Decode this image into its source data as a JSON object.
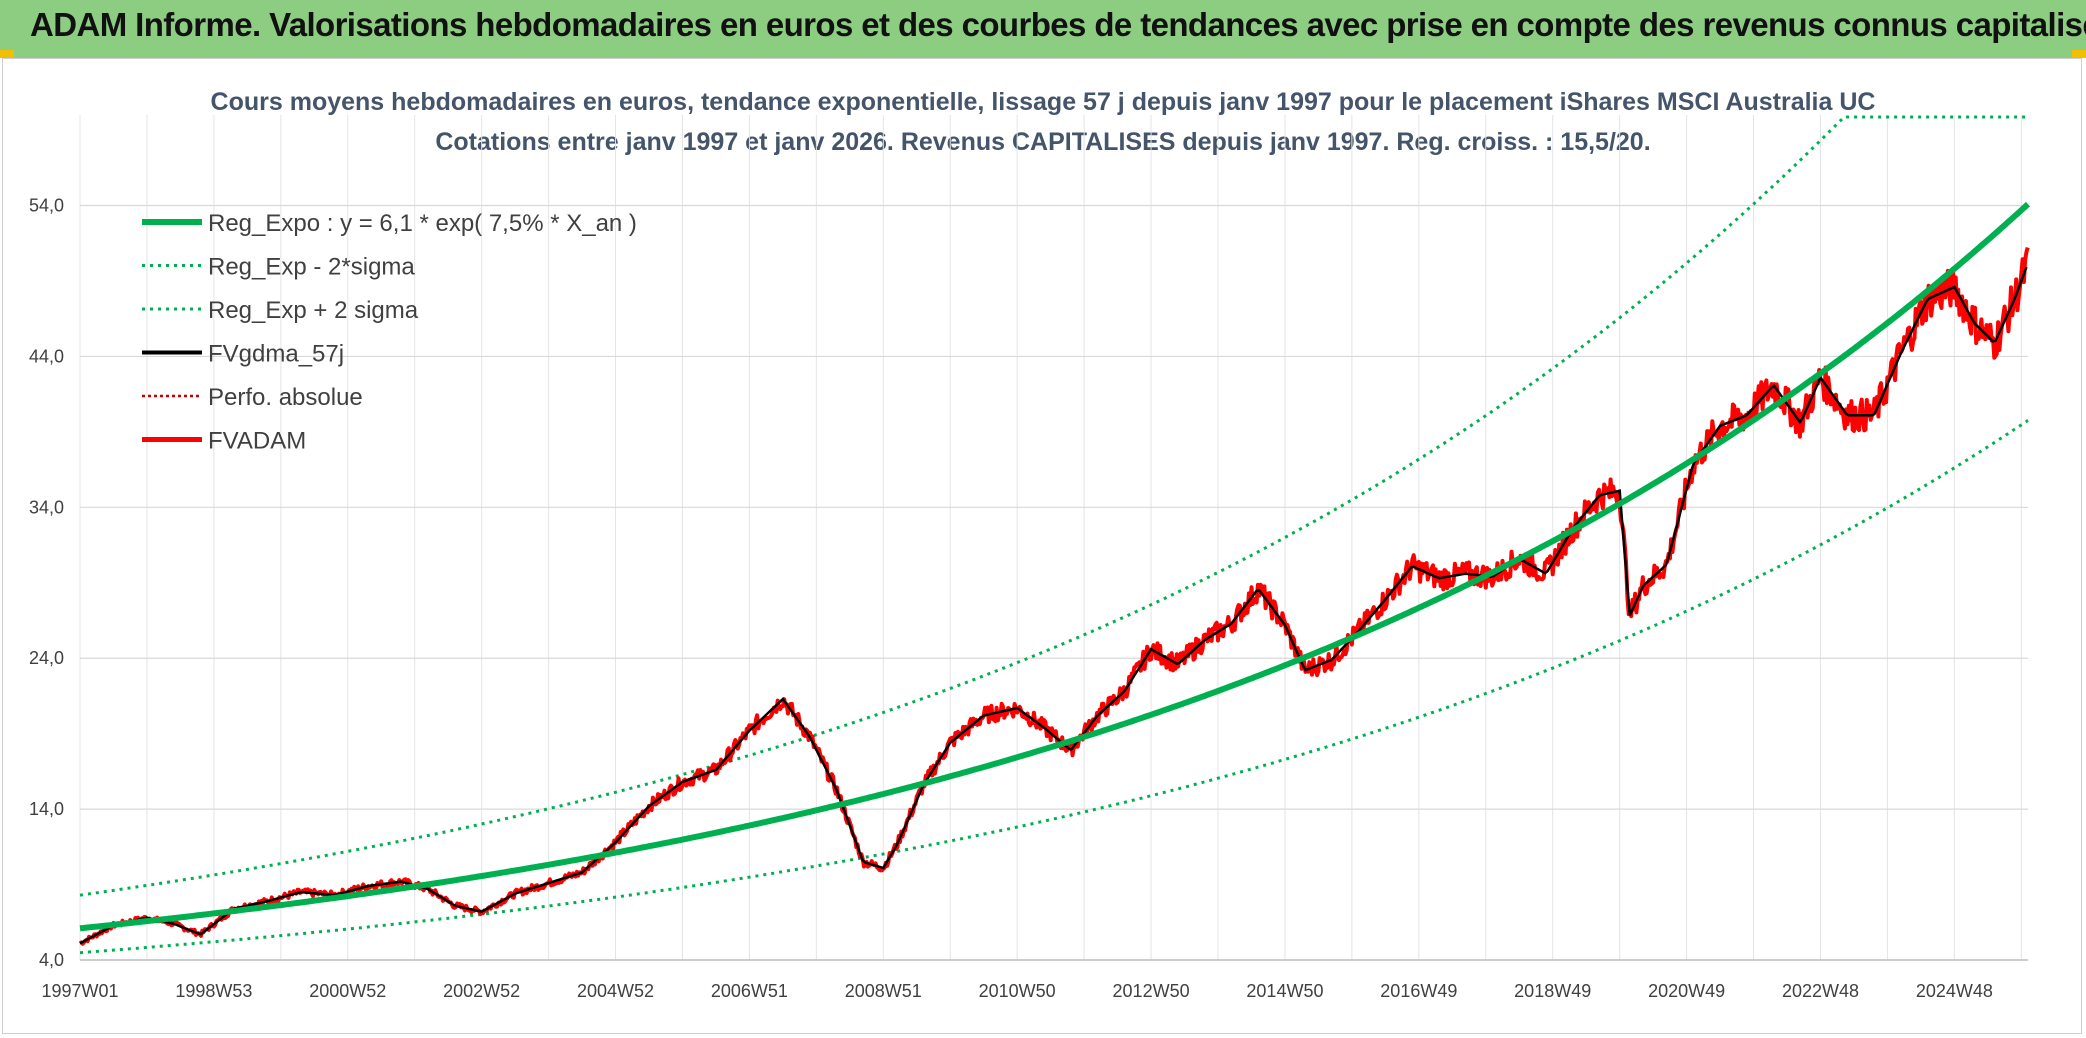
{
  "header": {
    "title": "ADAM Informe. Valorisations hebdomadaires en euros et des courbes de tendances avec prise en compte des revenus connus capitalisés"
  },
  "colors": {
    "header_bg": "#8ccd82",
    "reg_green": "#00b050",
    "smooth_black": "#000000",
    "adam_red": "#ff0000",
    "perfo_darkred": "#c00000"
  },
  "chart_data": {
    "type": "line",
    "title_line1": "Cours moyens hebdomadaires en euros, tendance exponentielle, lissage 57 j depuis janv 1997 pour le placement iShares MSCI Australia UC",
    "title_line2": "Cotations entre janv 1997 et janv 2026. Revenus CAPITALISES depuis janv 1997. Reg. croiss. : 15,5/20.",
    "xlabel": "",
    "ylabel": "",
    "x_range_years": [
      1997.0,
      2026.1
    ],
    "x_tick_labels": [
      "1997W01",
      "1998W53",
      "2000W52",
      "2002W52",
      "2004W52",
      "2006W51",
      "2008W51",
      "2010W50",
      "2012W50",
      "2014W50",
      "2016W49",
      "2018W49",
      "2020W49",
      "2022W48",
      "2024W48"
    ],
    "x_tick_years": [
      1997.0,
      1999.0,
      2001.0,
      2003.0,
      2005.0,
      2007.0,
      2009.0,
      2011.0,
      2013.0,
      2015.0,
      2017.0,
      2019.0,
      2021.0,
      2023.0,
      2025.0
    ],
    "y_ticks": [
      "4,0",
      "14,0",
      "24,0",
      "34,0",
      "44,0",
      "54,0"
    ],
    "y_tick_values": [
      4,
      14,
      24,
      34,
      44,
      54
    ],
    "ylim": [
      4,
      60
    ],
    "grid": true,
    "legend_position": "top-left",
    "legend": [
      "Reg_Expo : y = 6,1 * exp( 7,5% *  X_an )",
      "Reg_Exp - 2*sigma",
      "Reg_Exp + 2 sigma",
      "FVgdma_57j",
      "Perfo. absolue",
      "FVADAM"
    ],
    "trend": {
      "a": 6.1,
      "b": 0.075,
      "sigma_factor_low": 0.735,
      "sigma_factor_high": 1.36
    },
    "fvadam_series": {
      "x": [
        1997.0,
        1997.5,
        1998.0,
        1998.4,
        1998.8,
        1999.3,
        1999.8,
        2000.3,
        2000.8,
        2001.3,
        2001.8,
        2002.2,
        2002.6,
        2003.0,
        2003.5,
        2004.0,
        2004.5,
        2005.0,
        2005.5,
        2006.0,
        2006.5,
        2007.0,
        2007.5,
        2007.9,
        2008.3,
        2008.7,
        2009.0,
        2009.2,
        2009.6,
        2010.0,
        2010.5,
        2011.0,
        2011.4,
        2011.8,
        2012.2,
        2012.6,
        2013.0,
        2013.4,
        2013.8,
        2014.2,
        2014.6,
        2015.0,
        2015.3,
        2015.7,
        2016.1,
        2016.5,
        2016.9,
        2017.3,
        2017.7,
        2018.1,
        2018.5,
        2018.9,
        2019.3,
        2019.7,
        2020.0,
        2020.15,
        2020.35,
        2020.7,
        2021.1,
        2021.5,
        2021.9,
        2022.3,
        2022.7,
        2023.0,
        2023.4,
        2023.8,
        2024.2,
        2024.6,
        2025.0,
        2025.3,
        2025.6,
        2025.9,
        2026.1
      ],
      "y": [
        5.1,
        6.3,
        6.8,
        6.4,
        5.7,
        7.4,
        7.9,
        8.5,
        8.3,
        8.9,
        9.2,
        8.7,
        7.6,
        7.2,
        8.4,
        9.1,
        9.8,
        11.8,
        14.2,
        15.8,
        16.6,
        19.2,
        21.3,
        18.8,
        15.3,
        10.5,
        10.1,
        11.6,
        15.6,
        18.4,
        20.2,
        20.7,
        19.4,
        17.9,
        20.2,
        21.8,
        24.6,
        23.6,
        25.2,
        26.3,
        28.6,
        26.2,
        23.2,
        23.9,
        25.8,
        27.9,
        30.1,
        29.3,
        29.6,
        29.4,
        30.6,
        29.6,
        32.6,
        34.8,
        35.1,
        26.8,
        28.8,
        30.2,
        36.9,
        39.4,
        40.1,
        42.1,
        39.6,
        42.6,
        40.1,
        40.1,
        44.2,
        47.8,
        48.6,
        46.2,
        44.9,
        47.8,
        50.2
      ]
    }
  }
}
